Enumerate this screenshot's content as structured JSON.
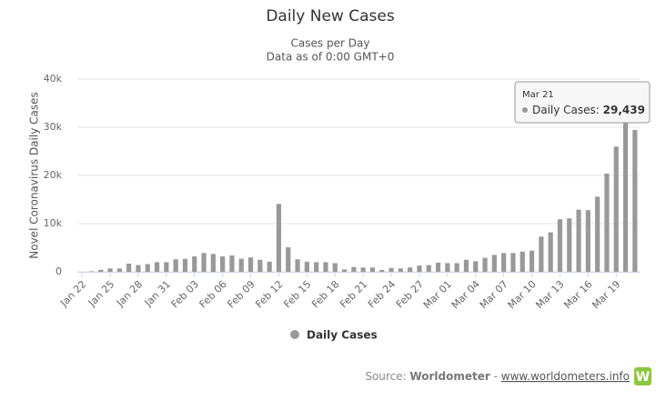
{
  "chart_data": {
    "type": "bar",
    "title": "Daily New Cases",
    "subtitle": [
      "Cases per Day",
      "Data as of 0:00 GMT+0"
    ],
    "y_label": "Novel Coronavirus Daily Cases",
    "categories": [
      "Jan 22",
      null,
      null,
      "Jan 25",
      null,
      null,
      "Jan 28",
      null,
      null,
      "Jan 31",
      null,
      null,
      "Feb 03",
      null,
      null,
      "Feb 06",
      null,
      null,
      "Feb 09",
      null,
      null,
      "Feb 12",
      null,
      null,
      "Feb 15",
      null,
      null,
      "Feb 18",
      null,
      null,
      "Feb 21",
      null,
      null,
      "Feb 24",
      null,
      null,
      "Feb 27",
      null,
      null,
      "Mar 01",
      null,
      null,
      "Mar 04",
      null,
      null,
      "Mar 07",
      null,
      null,
      "Mar 10",
      null,
      null,
      "Mar 13",
      null,
      null,
      "Mar 16",
      null,
      null,
      "Mar 19",
      null,
      null
    ],
    "series": [
      {
        "name": "Daily Cases",
        "color": "#999999",
        "values": [
          0,
          100,
          400,
          700,
          700,
          1700,
          1400,
          1600,
          2000,
          2000,
          2600,
          2700,
          3200,
          3900,
          3700,
          3200,
          3400,
          2700,
          3000,
          2500,
          2100,
          14100,
          5100,
          2600,
          2100,
          2000,
          2000,
          1800,
          500,
          1000,
          900,
          900,
          400,
          800,
          700,
          900,
          1300,
          1400,
          1900,
          1800,
          1800,
          2500,
          2200,
          2900,
          3500,
          3900,
          3900,
          4200,
          4400,
          7300,
          8200,
          10900,
          11100,
          12900,
          12800,
          15600,
          20400,
          26000,
          31000,
          29439
        ]
      }
    ],
    "ylim": [
      0,
      40000
    ],
    "yticks": [
      0,
      {
        "value": 10000,
        "label": "10k"
      },
      {
        "value": 20000,
        "label": "20k"
      },
      {
        "value": 30000,
        "label": "30k"
      },
      {
        "value": 40000,
        "label": "40k"
      }
    ],
    "grid": true,
    "tooltip": {
      "category": "Mar 21",
      "label": "Daily Cases:",
      "value": 29439,
      "value_label": "29,439"
    },
    "source": {
      "prefix": "Source:",
      "name": "Worldometer",
      "separator": "-",
      "url": "www.worldometers.info",
      "logo": "W"
    }
  }
}
